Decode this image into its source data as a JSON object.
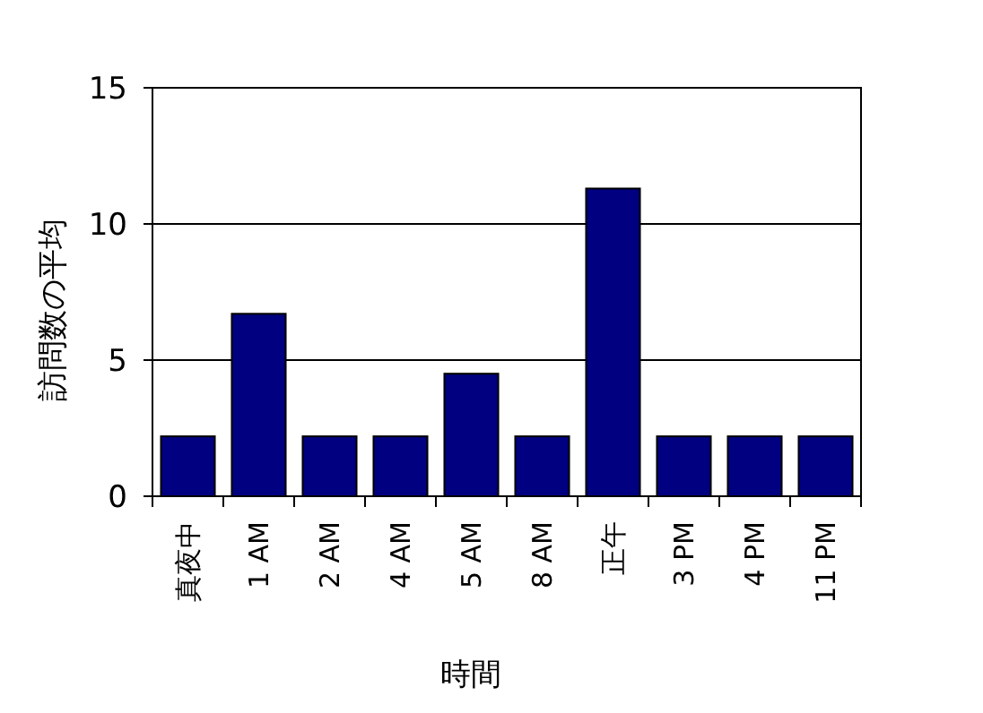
{
  "chart_data": {
    "type": "bar",
    "xlabel": "時間",
    "ylabel": "訪問数の平均",
    "categories": [
      "真夜中",
      "1 AM",
      "2 AM",
      "4 AM",
      "5 AM",
      "8 AM",
      "正午",
      "3 PM",
      "4 PM",
      "11 PM"
    ],
    "values": [
      2.2,
      6.7,
      2.2,
      2.2,
      4.5,
      2.2,
      11.3,
      2.2,
      2.2,
      2.2
    ],
    "color": "#000080",
    "ylim": [
      0,
      15
    ],
    "yticks": [
      0,
      5,
      10,
      15
    ],
    "grid": "y"
  }
}
